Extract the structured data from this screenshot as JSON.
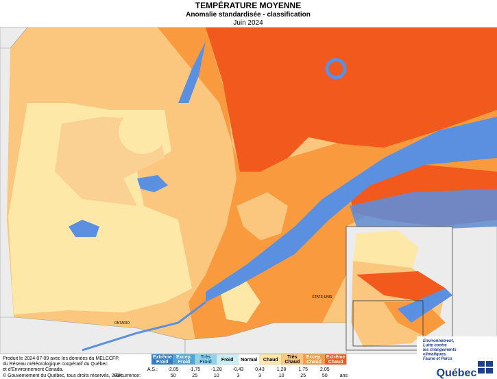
{
  "header": {
    "title": "TEMPÉRATURE MOYENNE",
    "subtitle": "Anomalie standardisée - classification",
    "date": "Juin 2024"
  },
  "map_labels": {
    "ontario": "ONTARIO",
    "usa": "ÉTATS-UNIS"
  },
  "legend": {
    "classes": [
      {
        "lines": [
          "Extrême",
          "Froid"
        ],
        "color": "#2f7fc8",
        "text_color": "#ffffff"
      },
      {
        "lines": [
          "Excep.",
          "Froid"
        ],
        "color": "#4ea3dc",
        "text_color": "#ffffff"
      },
      {
        "lines": [
          "Très",
          "Froid"
        ],
        "color": "#8fd3e8",
        "text_color": "#1a4f7a"
      },
      {
        "lines": [
          "Froid"
        ],
        "color": "#c9eef3",
        "text_color": "#000000"
      },
      {
        "lines": [
          "Normal"
        ],
        "color": "#ffffff",
        "text_color": "#000000"
      },
      {
        "lines": [
          "Chaud"
        ],
        "color": "#fde8a8",
        "text_color": "#000000"
      },
      {
        "lines": [
          "Très",
          "Chaud"
        ],
        "color": "#fbc67e",
        "text_color": "#000000"
      },
      {
        "lines": [
          "Excep.",
          "Chaud"
        ],
        "color": "#f89a3d",
        "text_color": "#ffffff"
      },
      {
        "lines": [
          "Extrême",
          "Chaud"
        ],
        "color": "#f25a1d",
        "text_color": "#ffffff"
      }
    ],
    "as_label": "A.S.:",
    "as_values": [
      "-2,05",
      "-1,75",
      "-1,28",
      "-0,43",
      "0,43",
      "1,28",
      "1,75",
      "2,05"
    ],
    "recurrence_label": "Récurrence:",
    "recurrence_values": [
      50,
      25,
      10,
      3,
      3,
      10,
      25,
      50
    ],
    "recurrence_unit": "ans"
  },
  "footer": {
    "credits": [
      "Produit le 2024-07-09 avec les données du MELCCFP,",
      "du Réseau météorologique coopératif du Québec",
      "et d'Environnement Canada."
    ],
    "copyright": "© Gouvernement du Québec, tous droits réservés, 2024"
  },
  "logo": {
    "lines": [
      "Environnement,",
      "Lutte contre",
      "les changements",
      "climatiques,",
      "Faune et Parcs"
    ],
    "name": "Québec"
  }
}
